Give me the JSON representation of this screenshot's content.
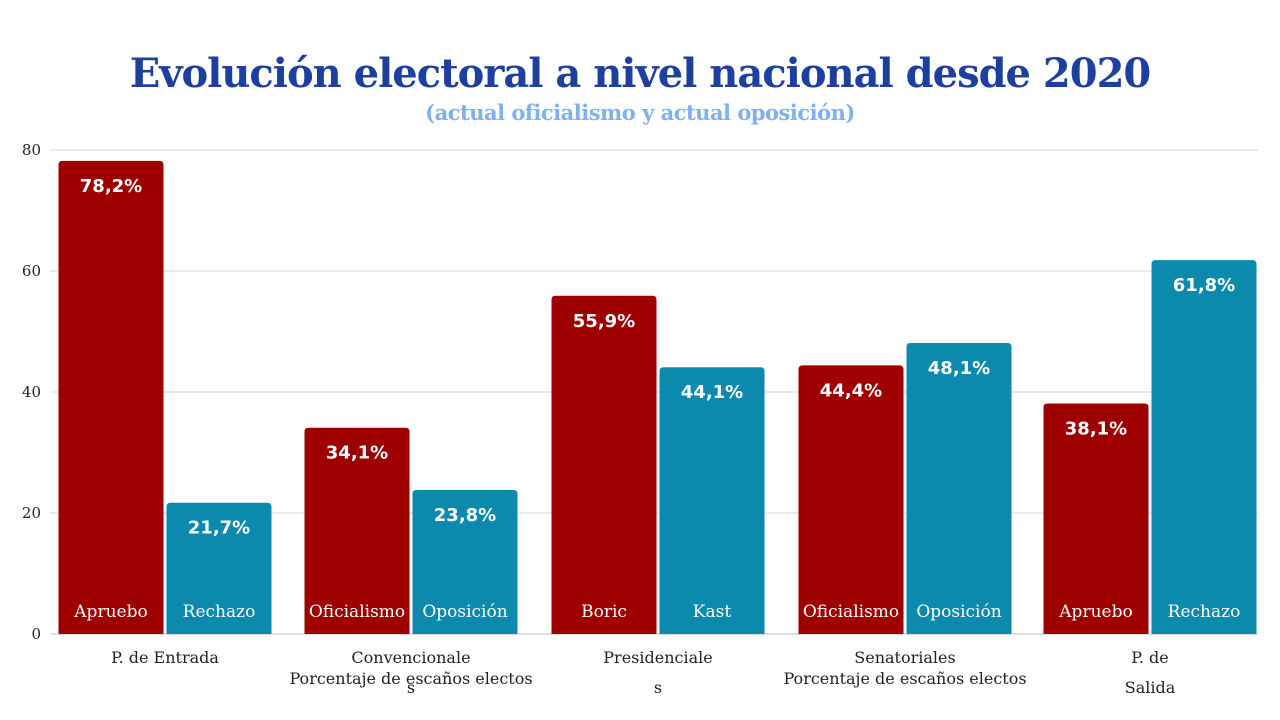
{
  "chart_data": {
    "type": "bar",
    "title": "Evolución electoral a nivel nacional desde 2020",
    "subtitle": "(actual oficialismo y actual oposición)",
    "ylim": [
      0,
      80
    ],
    "yticks": [
      "0",
      "20",
      "40",
      "60",
      "80"
    ],
    "grid": true,
    "colors": {
      "red": "#9e0000",
      "blue": "#0b8aad"
    },
    "groups": [
      {
        "label_lines": [
          "P. de Entrada"
        ],
        "bars": [
          {
            "label": "Apruebo",
            "value": 78.2,
            "value_label": "78,2%",
            "color": "red"
          },
          {
            "label": "Rechazo",
            "value": 21.7,
            "value_label": "21,7%",
            "color": "blue"
          }
        ]
      },
      {
        "label_lines": [
          "Convencionale",
          "Porcentaje de escaños electos",
          "s"
        ],
        "bars": [
          {
            "label": "Oficialismo",
            "value": 34.1,
            "value_label": "34,1%",
            "color": "red"
          },
          {
            "label": "Oposición",
            "value": 23.8,
            "value_label": "23,8%",
            "color": "blue"
          }
        ]
      },
      {
        "label_lines": [
          "Presidenciale",
          "s"
        ],
        "bars": [
          {
            "label": "Boric",
            "value": 55.9,
            "value_label": "55,9%",
            "color": "red"
          },
          {
            "label": "Kast",
            "value": 44.1,
            "value_label": "44,1%",
            "color": "blue"
          }
        ]
      },
      {
        "label_lines": [
          "Senatoriales",
          "Porcentaje de escaños electos"
        ],
        "bars": [
          {
            "label": "Oficialismo",
            "value": 44.4,
            "value_label": "44,4%",
            "color": "red"
          },
          {
            "label": "Oposición",
            "value": 48.1,
            "value_label": "48,1%",
            "color": "blue"
          }
        ]
      },
      {
        "label_lines": [
          "P. de",
          "Salida"
        ],
        "bars": [
          {
            "label": "Apruebo",
            "value": 38.1,
            "value_label": "38,1%",
            "color": "red"
          },
          {
            "label": "Rechazo",
            "value": 61.8,
            "value_label": "61,8%",
            "color": "blue"
          }
        ]
      }
    ]
  }
}
